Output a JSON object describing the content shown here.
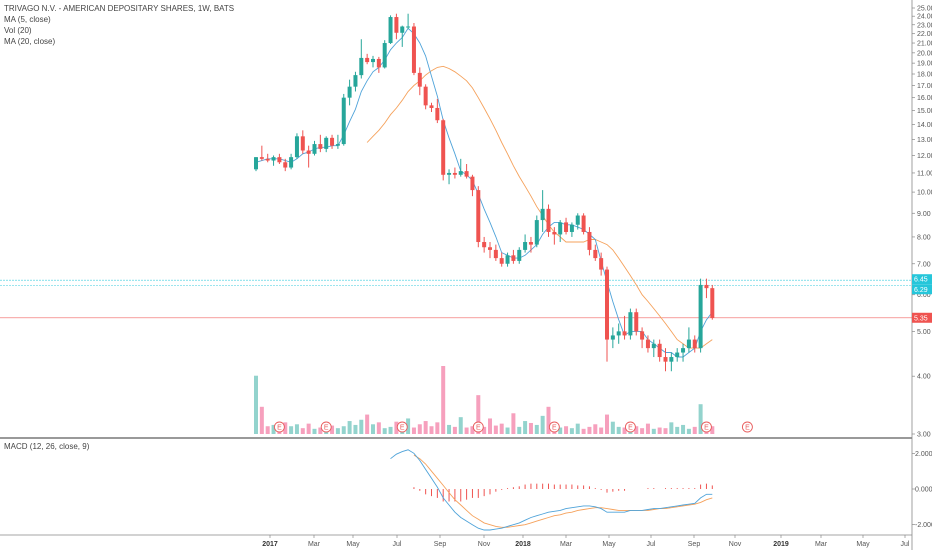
{
  "legend": {
    "title": "TRIVAGO N.V. - AMERICAN DEPOSITARY SHARES, 1W, BATS",
    "ma5": "MA (5, close)",
    "vol": "Vol (20)",
    "ma20": "MA (20, close)",
    "macd": "MACD (12, 26, close, 9)"
  },
  "price_ticks": [
    "25.00",
    "24.00",
    "23.00",
    "22.00",
    "21.00",
    "20.00",
    "19.00",
    "18.00",
    "17.00",
    "16.00",
    "15.00",
    "14.00",
    "13.00",
    "12.00",
    "11.00",
    "10.00",
    "9.00",
    "8.00",
    "7.00",
    "6.00",
    "5.00",
    "4.00",
    "3.00"
  ],
  "macd_ticks": [
    "2.0000",
    "0.0000",
    "-2.0000"
  ],
  "time_labels": [
    {
      "label": "2017",
      "bold": true
    },
    {
      "label": "Mar",
      "bold": false
    },
    {
      "label": "May",
      "bold": false
    },
    {
      "label": "Jul",
      "bold": false
    },
    {
      "label": "Sep",
      "bold": false
    },
    {
      "label": "Nov",
      "bold": false
    },
    {
      "label": "2018",
      "bold": true
    },
    {
      "label": "Mar",
      "bold": false
    },
    {
      "label": "May",
      "bold": false
    },
    {
      "label": "Jul",
      "bold": false
    },
    {
      "label": "Sep",
      "bold": false
    },
    {
      "label": "Nov",
      "bold": false
    },
    {
      "label": "2019",
      "bold": true
    },
    {
      "label": "Mar",
      "bold": false
    },
    {
      "label": "May",
      "bold": false
    },
    {
      "label": "Jul",
      "bold": false
    }
  ],
  "price_tags": [
    {
      "text": "6.45",
      "color": "#26c6da",
      "value": 6.45
    },
    {
      "text": "6.29",
      "color": "#26c6da",
      "value": 6.29
    },
    {
      "text": "5.35",
      "color": "#ef5350",
      "value": 5.35
    }
  ],
  "earnings_marker": "E",
  "colors": {
    "up": "#26a69a",
    "down": "#ef5350",
    "vol_up": "#80cbc4",
    "vol_down": "#f48fb1",
    "ma5": "#4fa3d9",
    "ma20": "#f5a15b",
    "macd_line": "#4fa3d9",
    "signal_line": "#f5a15b",
    "hist": "#ef5350"
  },
  "chart_data": {
    "type": "candlestick",
    "title": "TRIVAGO N.V. - AMERICAN DEPOSITARY SHARES, 1W, BATS",
    "interval": "1W",
    "price_range": [
      3.0,
      25.0
    ],
    "price_scale": "log",
    "macd_range": [
      -2.3,
      2.3
    ],
    "candles": [
      [
        11.2,
        11.9,
        11.1,
        11.9
      ],
      [
        11.9,
        12.6,
        11.7,
        11.8
      ],
      [
        11.8,
        12.1,
        11.6,
        11.7
      ],
      [
        11.7,
        12.0,
        11.4,
        11.9
      ],
      [
        11.9,
        12.1,
        11.5,
        11.6
      ],
      [
        11.6,
        11.8,
        11.1,
        11.3
      ],
      [
        11.3,
        12.1,
        11.2,
        11.9
      ],
      [
        11.9,
        13.4,
        11.8,
        13.2
      ],
      [
        13.2,
        13.6,
        12.1,
        12.3
      ],
      [
        12.3,
        12.6,
        11.3,
        12.1
      ],
      [
        12.1,
        12.9,
        12.0,
        12.7
      ],
      [
        12.7,
        13.3,
        12.2,
        12.4
      ],
      [
        12.4,
        13.2,
        12.2,
        13.1
      ],
      [
        13.1,
        13.3,
        12.4,
        12.6
      ],
      [
        12.6,
        13.3,
        12.4,
        12.7
      ],
      [
        12.7,
        16.3,
        12.6,
        16.0
      ],
      [
        16.0,
        17.5,
        15.4,
        16.9
      ],
      [
        16.9,
        18.2,
        16.5,
        17.9
      ],
      [
        17.9,
        21.4,
        17.6,
        19.5
      ],
      [
        19.5,
        19.9,
        18.9,
        19.1
      ],
      [
        19.1,
        19.7,
        18.6,
        19.4
      ],
      [
        19.4,
        19.6,
        18.1,
        18.6
      ],
      [
        18.6,
        21.3,
        18.5,
        21.0
      ],
      [
        21.0,
        24.1,
        20.9,
        23.9
      ],
      [
        23.9,
        24.3,
        21.4,
        22.1
      ],
      [
        22.1,
        22.9,
        20.6,
        22.8
      ],
      [
        22.8,
        24.3,
        22.5,
        22.8
      ],
      [
        22.8,
        23.2,
        17.9,
        18.1
      ],
      [
        18.1,
        18.6,
        16.2,
        16.9
      ],
      [
        16.9,
        17.1,
        15.1,
        15.4
      ],
      [
        15.4,
        15.6,
        14.9,
        15.2
      ],
      [
        15.2,
        15.9,
        14.1,
        14.3
      ],
      [
        14.3,
        14.4,
        10.6,
        10.9
      ],
      [
        10.9,
        11.2,
        10.4,
        11.0
      ],
      [
        11.0,
        11.3,
        10.7,
        10.9
      ],
      [
        10.9,
        11.8,
        10.8,
        11.1
      ],
      [
        11.1,
        11.5,
        10.7,
        10.8
      ],
      [
        10.8,
        10.9,
        9.8,
        10.1
      ],
      [
        10.1,
        10.3,
        7.6,
        7.8
      ],
      [
        7.8,
        8.0,
        7.4,
        7.6
      ],
      [
        7.6,
        7.8,
        7.2,
        7.5
      ],
      [
        7.5,
        7.7,
        7.1,
        7.2
      ],
      [
        7.2,
        7.4,
        6.9,
        7.0
      ],
      [
        7.0,
        7.4,
        6.9,
        7.3
      ],
      [
        7.3,
        7.5,
        7.0,
        7.1
      ],
      [
        7.1,
        7.6,
        7.0,
        7.5
      ],
      [
        7.5,
        8.1,
        7.4,
        7.8
      ],
      [
        7.8,
        8.0,
        7.4,
        7.7
      ],
      [
        7.7,
        8.9,
        7.6,
        8.7
      ],
      [
        8.7,
        10.1,
        8.2,
        9.2
      ],
      [
        9.2,
        9.4,
        8.0,
        8.2
      ],
      [
        8.2,
        8.4,
        7.7,
        8.1
      ],
      [
        8.1,
        8.7,
        7.8,
        8.6
      ],
      [
        8.6,
        8.8,
        8.1,
        8.2
      ],
      [
        8.2,
        8.6,
        8.0,
        8.5
      ],
      [
        8.5,
        9.0,
        8.3,
        8.9
      ],
      [
        8.9,
        9.0,
        8.1,
        8.2
      ],
      [
        8.2,
        8.4,
        7.3,
        7.5
      ],
      [
        7.5,
        7.7,
        7.1,
        7.2
      ],
      [
        7.2,
        7.4,
        6.6,
        6.8
      ],
      [
        6.8,
        6.9,
        4.3,
        4.8
      ],
      [
        4.8,
        5.1,
        4.6,
        4.9
      ],
      [
        4.9,
        5.2,
        4.7,
        5.0
      ],
      [
        5.0,
        5.4,
        4.8,
        4.9
      ],
      [
        4.9,
        5.6,
        4.8,
        5.5
      ],
      [
        5.5,
        5.6,
        4.9,
        5.0
      ],
      [
        5.0,
        5.1,
        4.6,
        4.8
      ],
      [
        4.8,
        4.9,
        4.5,
        4.6
      ],
      [
        4.6,
        4.8,
        4.4,
        4.7
      ],
      [
        4.7,
        4.8,
        4.3,
        4.4
      ],
      [
        4.4,
        4.6,
        4.1,
        4.3
      ],
      [
        4.3,
        4.5,
        4.1,
        4.4
      ],
      [
        4.4,
        4.6,
        4.3,
        4.5
      ],
      [
        4.5,
        4.7,
        4.3,
        4.6
      ],
      [
        4.6,
        5.1,
        4.5,
        4.8
      ],
      [
        4.8,
        4.9,
        4.5,
        4.6
      ],
      [
        4.6,
        6.5,
        4.5,
        6.3
      ],
      [
        6.3,
        6.5,
        5.9,
        6.2
      ],
      [
        6.2,
        6.3,
        5.3,
        5.35
      ]
    ],
    "candle_fields": [
      "open",
      "high",
      "low",
      "close"
    ],
    "volume": [
      9,
      4.2,
      1.2,
      1.4,
      0.8,
      1.8,
      1.2,
      1.5,
      0.9,
      1.6,
      0.8,
      1.0,
      0.9,
      1.3,
      0.9,
      1.2,
      2.0,
      1.4,
      2.2,
      3.0,
      1.5,
      1.8,
      0.9,
      1.1,
      1.9,
      1.4,
      2.4,
      1.0,
      1.5,
      2.0,
      1.2,
      1.8,
      10.5,
      1.4,
      1.1,
      2.6,
      1.0,
      1.2,
      6.0,
      1.1,
      2.4,
      1.3,
      1.6,
      1.0,
      3.2,
      1.1,
      2.0,
      1.7,
      1.4,
      2.8,
      4.2,
      1.3,
      1.0,
      1.2,
      0.9,
      1.6,
      0.8,
      1.1,
      1.5,
      1.0,
      3.0,
      1.9,
      1.1,
      1.0,
      1.3,
      1.2,
      0.9,
      1.6,
      0.8,
      1.0,
      0.9,
      1.8,
      1.1,
      1.4,
      0.8,
      1.1,
      4.6,
      1.5,
      1.2
    ],
    "ma5": [
      11.6,
      11.7,
      11.8,
      11.8,
      11.8,
      11.7,
      11.6,
      11.8,
      12.1,
      12.2,
      12.4,
      12.5,
      12.5,
      12.6,
      12.6,
      13.3,
      14.2,
      15.1,
      16.5,
      17.4,
      18.2,
      18.6,
      19.3,
      20.3,
      21.0,
      21.6,
      22.6,
      22.0,
      21.0,
      19.7,
      17.8,
      16.1,
      14.3,
      13.1,
      12.1,
      11.1,
      10.9,
      10.6,
      9.9,
      9.2,
      8.6,
      8.0,
      7.4,
      7.3,
      7.2,
      7.2,
      7.3,
      7.5,
      7.7,
      8.1,
      8.4,
      8.6,
      8.6,
      8.5,
      8.5,
      8.4,
      8.3,
      8.1,
      7.9,
      7.1,
      6.4,
      5.8,
      5.3,
      4.9,
      5.0,
      5.0,
      5.0,
      4.8,
      4.7,
      4.6,
      4.5,
      4.5,
      4.4,
      4.4,
      4.5,
      4.6,
      5.0,
      5.3,
      5.5
    ],
    "ma20": [
      null,
      null,
      null,
      null,
      null,
      null,
      null,
      null,
      null,
      null,
      null,
      null,
      null,
      null,
      null,
      null,
      null,
      null,
      null,
      12.8,
      13.2,
      13.6,
      14.1,
      14.7,
      15.2,
      15.8,
      16.5,
      17.0,
      17.4,
      17.9,
      18.3,
      18.6,
      18.7,
      18.5,
      18.2,
      17.8,
      17.4,
      16.8,
      16.0,
      15.2,
      14.4,
      13.6,
      12.8,
      12.1,
      11.4,
      10.8,
      10.3,
      9.8,
      9.3,
      8.9,
      8.5,
      8.2,
      8.0,
      7.8,
      7.8,
      7.8,
      7.8,
      7.9,
      7.9,
      7.8,
      7.7,
      7.5,
      7.2,
      6.9,
      6.6,
      6.3,
      6.0,
      5.8,
      5.6,
      5.4,
      5.2,
      5.0,
      4.8,
      4.7,
      4.6,
      4.6,
      4.6,
      4.7,
      4.8
    ],
    "macd": [
      null,
      null,
      null,
      null,
      null,
      null,
      null,
      null,
      null,
      null,
      null,
      null,
      null,
      null,
      null,
      null,
      null,
      null,
      null,
      null,
      null,
      null,
      null,
      1.7,
      1.95,
      2.1,
      2.2,
      2.0,
      1.6,
      1.1,
      0.6,
      0.1,
      -0.5,
      -0.9,
      -1.3,
      -1.6,
      -1.8,
      -2.0,
      -2.2,
      -2.3,
      -2.3,
      -2.25,
      -2.2,
      -2.1,
      -2.0,
      -1.9,
      -1.75,
      -1.6,
      -1.5,
      -1.4,
      -1.3,
      -1.25,
      -1.2,
      -1.1,
      -1.05,
      -1.0,
      -0.95,
      -0.95,
      -1.0,
      -1.1,
      -1.3,
      -1.3,
      -1.3,
      -1.3,
      -1.2,
      -1.2,
      -1.2,
      -1.15,
      -1.1,
      -1.1,
      -1.05,
      -1.0,
      -0.95,
      -0.9,
      -0.85,
      -0.8,
      -0.5,
      -0.3,
      -0.3
    ],
    "signal": [
      null,
      null,
      null,
      null,
      null,
      null,
      null,
      null,
      null,
      null,
      null,
      null,
      null,
      null,
      null,
      null,
      null,
      null,
      null,
      null,
      null,
      null,
      null,
      null,
      null,
      null,
      null,
      1.9,
      1.7,
      1.4,
      1.0,
      0.6,
      0.2,
      -0.2,
      -0.6,
      -0.9,
      -1.2,
      -1.5,
      -1.7,
      -1.9,
      -2.0,
      -2.1,
      -2.15,
      -2.15,
      -2.1,
      -2.05,
      -2.0,
      -1.9,
      -1.8,
      -1.7,
      -1.6,
      -1.5,
      -1.45,
      -1.35,
      -1.3,
      -1.2,
      -1.15,
      -1.1,
      -1.05,
      -1.05,
      -1.1,
      -1.15,
      -1.2,
      -1.2,
      -1.2,
      -1.2,
      -1.2,
      -1.2,
      -1.15,
      -1.1,
      -1.1,
      -1.05,
      -1.0,
      -0.95,
      -0.9,
      -0.85,
      -0.75,
      -0.6,
      -0.5
    ],
    "hist": [
      null,
      null,
      null,
      null,
      null,
      null,
      null,
      null,
      null,
      null,
      null,
      null,
      null,
      null,
      null,
      null,
      null,
      null,
      null,
      null,
      null,
      null,
      null,
      null,
      null,
      null,
      null,
      0.1,
      -0.1,
      -0.3,
      -0.4,
      -0.5,
      -0.7,
      -0.7,
      -0.7,
      -0.7,
      -0.6,
      -0.5,
      -0.5,
      -0.4,
      -0.3,
      -0.15,
      -0.05,
      0.05,
      0.1,
      0.15,
      0.25,
      0.3,
      0.3,
      0.3,
      0.3,
      0.25,
      0.25,
      0.25,
      0.25,
      0.2,
      0.2,
      0.15,
      0.05,
      -0.05,
      -0.2,
      -0.15,
      -0.1,
      -0.1,
      0.0,
      0.0,
      0.0,
      0.05,
      0.05,
      0.0,
      0.05,
      0.05,
      0.05,
      0.05,
      0.05,
      0.05,
      0.25,
      0.3,
      0.2
    ],
    "earnings_weeks": [
      4,
      12,
      25,
      38,
      51,
      64,
      77
    ],
    "earnings_future_week": 84
  }
}
